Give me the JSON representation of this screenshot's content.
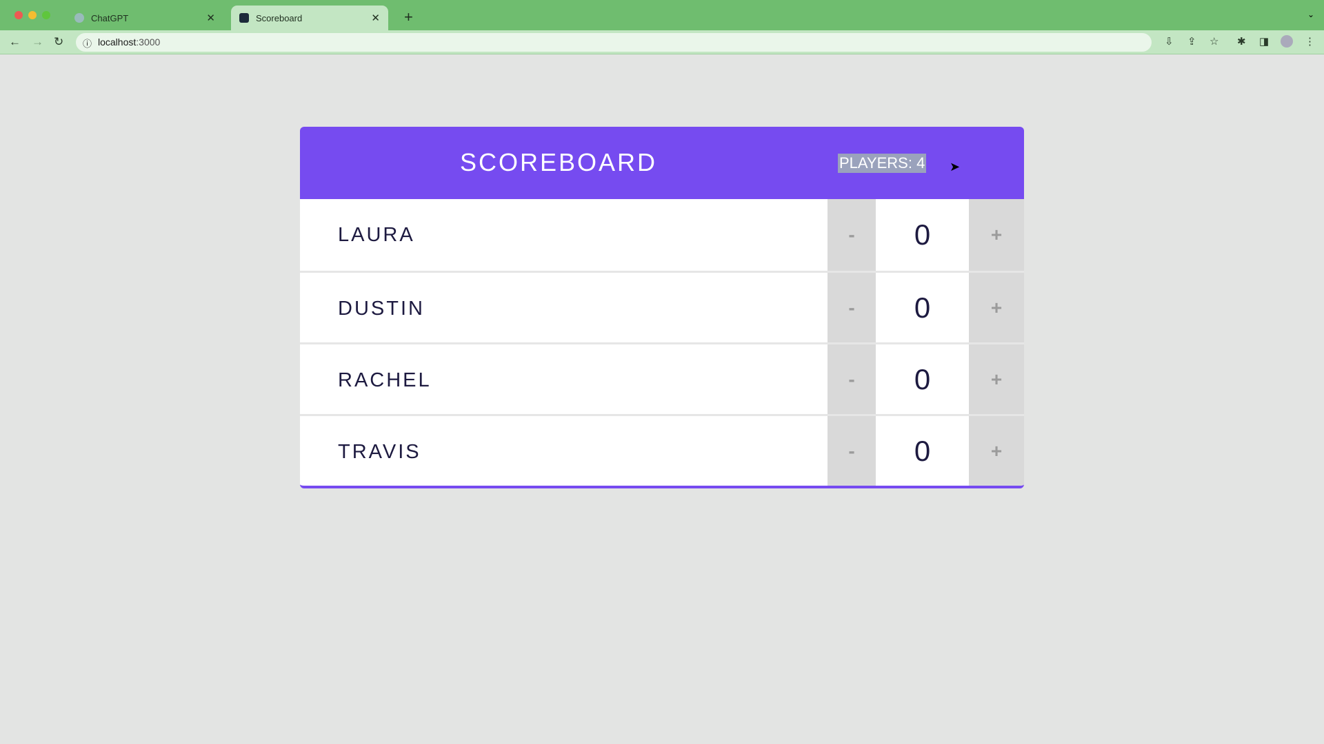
{
  "browser": {
    "tabs": [
      {
        "label": "ChatGPT",
        "active": false
      },
      {
        "label": "Scoreboard",
        "active": true
      }
    ],
    "url_host": "localhost",
    "url_port": ":3000"
  },
  "scoreboard": {
    "title": "SCOREBOARD",
    "players_label": "PLAYERS: 4",
    "decrement_label": "-",
    "increment_label": "+",
    "players": [
      {
        "name": "LAURA",
        "score": "0"
      },
      {
        "name": "DUSTIN",
        "score": "0"
      },
      {
        "name": "RACHEL",
        "score": "0"
      },
      {
        "name": "TRAVIS",
        "score": "0"
      }
    ]
  },
  "colors": {
    "accent": "#764bf0",
    "text": "#1d1a40",
    "button_bg": "#d9d9d9",
    "browser_chrome": "#6fbd6f"
  }
}
